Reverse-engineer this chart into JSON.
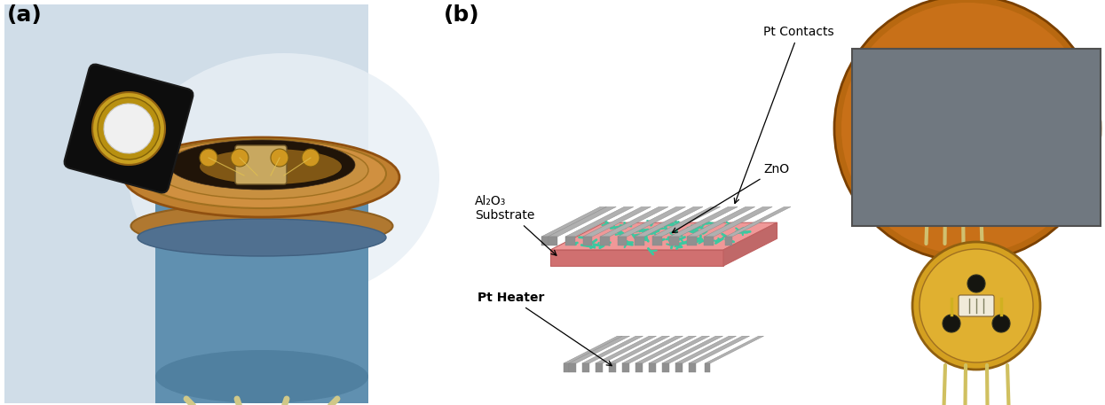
{
  "fig_width": 12.45,
  "fig_height": 4.57,
  "bg_color": "#ffffff",
  "label_a": "(a)",
  "label_b": "(b)",
  "label_fontsize": 18,
  "label_fontweight": "bold",
  "annotation_fontsize": 9,
  "contacts_color": "#b0b0b0",
  "heater_color": "#b0b0b0",
  "substrate_color": "#f08080",
  "zno_color": "#3cc8a0",
  "pt_contacts_label": "Pt Contacts",
  "zno_label": "ZnO",
  "al2o3_label": "Al₂O₃\nSubstrate",
  "pt_heater_label": "Pt Heater"
}
